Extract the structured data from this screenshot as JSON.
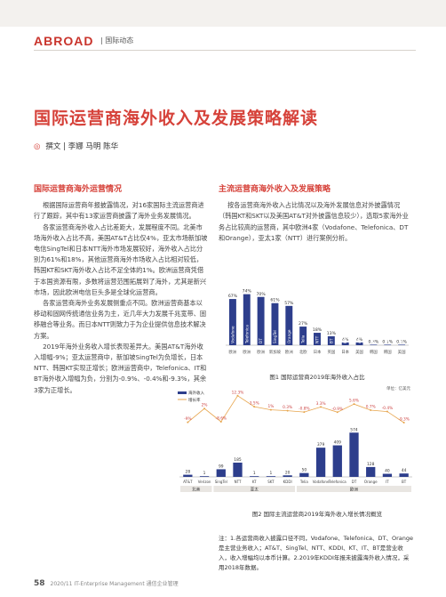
{
  "header": {
    "brand": "ABROAD",
    "section": "| 国际动态"
  },
  "title": "国际运营商海外收入及发展策略解读",
  "byline": "撰文 | 李娜 马明 陈华",
  "left": {
    "heading": "国际运营商海外运营情况",
    "paragraphs": [
      "根据国际运营商年报披露情况，对16家国际主流运营商进行了跟踪，其中有13家运营商披露了海外业务发展情况。",
      "各家运营商海外收入占比差距大，发展程度不同。北美市场海外收入占比不高，美国AT&T占比仅4%，亚太市场新加坡电信SingTel和日本NTT海外市场发展较好，海外收入占比分别为61%和18%，其他运营商海外市场收入占比相对较低，韩国KT和SKT海外收入占比不足全体的1%。欧洲运营商凭借于本国资源有限，多数将运营范围拓展到了海外，尤其是新兴市场，因此欧洲电信巨头多是全球化运营商。",
      "各家运营商海外业务发展侧重点不同。欧洲运营商基本以移动和固网传统通信业务为主，近几年大力发展千兆宽带、固移融合等业务。而日本NTT则致力于为企业提供信息技术解决方案。",
      "2019年海外业务收入增长表现差异大。美国AT&T海外收入增幅-9%；亚太运营商中，新加坡SingTel为负增长，日本NTT、韩国KT实现正增长；欧洲运营商中，Telefonica、IT和BT海外收入增幅为负，分别为-0.9%、-0.4%和-9.3%，其余3家为正增长。"
    ]
  },
  "right": {
    "heading": "主流运营商海外收入及发展策略",
    "paragraphs": [
      "按各运营商海外收入占比情况以及海外发展信息对外披露情况（韩国KT和SKT以及美国AT&T对外披露信息较少），选取5家海外业务占比较高的运营商，其中欧洲4家（Vodafone、Telefonica、DT和Orange），亚太1家（NTT）进行案例分析。"
    ]
  },
  "figure1": {
    "caption": "图1 国际运营商2019年海外收入占比",
    "chart_data": {
      "type": "bar",
      "title": "",
      "categories": [
        "Vodafone",
        "Telefonica",
        "DT",
        "SingTel",
        "Orange",
        "Telia",
        "NTT",
        "BT",
        "KDDI",
        "AT&T",
        "KT",
        "SKT",
        "Verizon"
      ],
      "values": [
        67,
        74,
        70,
        61,
        57,
        27,
        18,
        13,
        4,
        4,
        0.3,
        0.1,
        0.1
      ],
      "data_labels": [
        "67%",
        "74%",
        "70%",
        "61%",
        "57%",
        "27%",
        "18%",
        "13%",
        "4%",
        "4%",
        "0.3%",
        "0.1%",
        "0.1%"
      ],
      "region_labels": [
        "欧洲",
        "欧洲",
        "欧洲",
        "新加坡",
        "欧洲",
        "北欧",
        "日本",
        "英国",
        "日本",
        "美国",
        "韩国",
        "韩国",
        "美国"
      ],
      "color": "#2d3e8c",
      "ylim": [
        0,
        80
      ]
    }
  },
  "figure2": {
    "caption": "图2 国际主流运营商2019年海外收入增长情况概览",
    "legend": [
      "海外收入",
      "增长率"
    ],
    "unit": "单位：亿美元",
    "chart_data": {
      "type": "bar",
      "title": "",
      "categories": [
        "AT&T",
        "Verizon",
        "SingTel",
        "NTT",
        "KT",
        "SKT",
        "KDDI",
        "Telia",
        "Vodafone",
        "Telefonica",
        "DT",
        "Orange",
        "IT",
        "BT"
      ],
      "series": [
        {
          "name": "海外收入",
          "values": [
            28,
            1,
            99,
            185,
            1,
            1,
            20,
            50,
            379,
            409,
            574,
            128,
            40,
            44
          ]
        },
        {
          "name": "增长率",
          "values": [
            -9.0,
            2.0,
            -8.6,
            12.3,
            3.5,
            1.0,
            0.3,
            -0.8,
            3.3,
            -0.9,
            5.6,
            0.7,
            -0.4,
            -9.3
          ]
        }
      ],
      "data_labels": [
        "28",
        "1",
        "99",
        "185",
        "1",
        "1",
        "20",
        "50",
        "379",
        "409",
        "574",
        "128",
        "40",
        "44"
      ],
      "rate_labels": [
        "-9%",
        "2%",
        "-8.6%",
        "12.3%",
        "3.5%",
        "1%",
        "0.3%",
        "-0.8%",
        "3.3%",
        "-0.9%",
        "5.6%",
        "0.7%",
        "-0.4%",
        "-9.3%"
      ],
      "groups": [
        "北美",
        "亚太",
        "欧洲"
      ]
    }
  },
  "note": "注：1.各运营商收入披露口径不同，Vodafone、Telefonica、DT、Orange是主营业务收入；AT&T、SingTel、NTT、KDDI、KT、IT、BT是营业收入，收入增幅均以本币计算。2.2019年KDDI年报未披露海外收入情况，采用2018年数据。",
  "footer": {
    "page": "58",
    "journal": "2020/11 IT-Enterprise Management 通信企业管理"
  },
  "colors": {
    "accent": "#d6423a",
    "bar": "#2d3e8c"
  }
}
